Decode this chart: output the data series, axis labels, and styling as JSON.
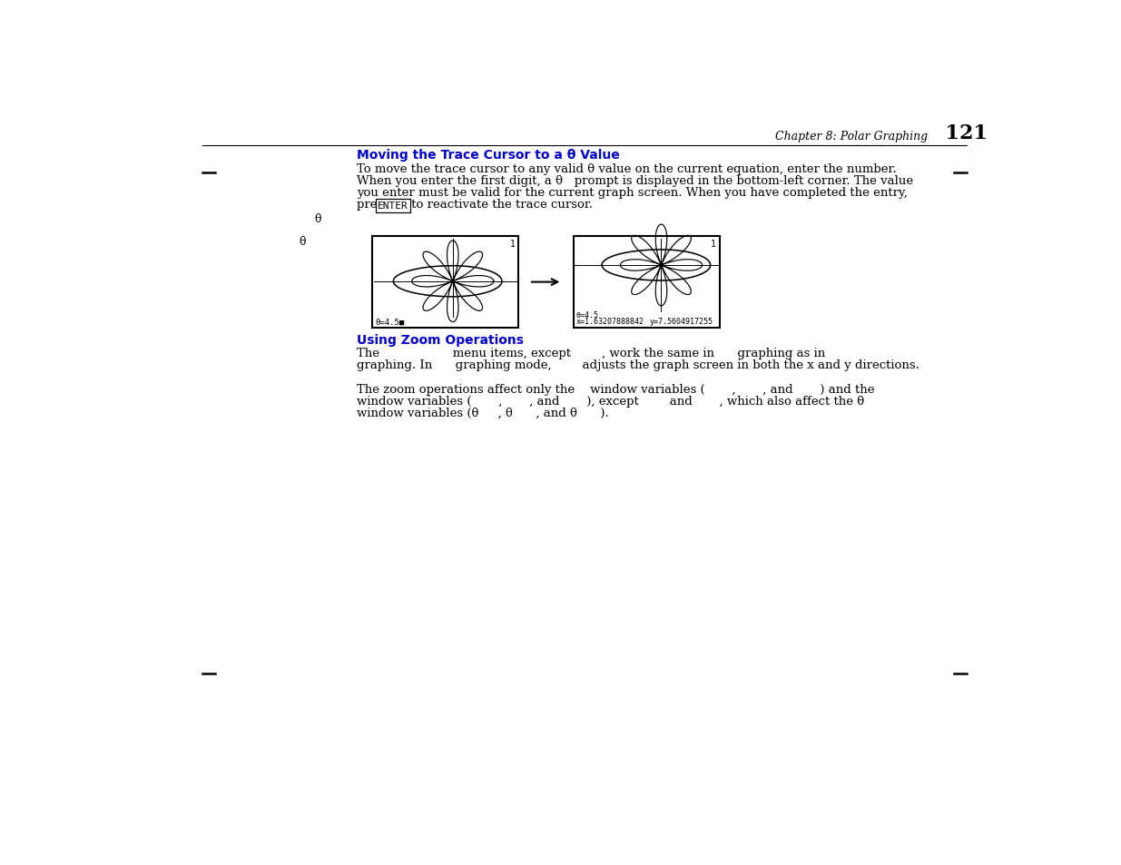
{
  "page_number": "121",
  "chapter_header": "Chapter 8: Polar Graphing",
  "section1_title": "Moving the Trace Cursor to a θ Value",
  "section1_body_line1": "To move the trace cursor to any valid θ value on the current equation, enter the number.",
  "section1_body_line2": "When you enter the first digit, a θ   prompt is displayed in the bottom-left corner. The value",
  "section1_body_line3": "you enter must be valid for the current graph screen. When you have completed the entry,",
  "section1_body_line4_pre": "press ",
  "section1_body_line4_enter": "ENTER",
  "section1_body_line4_post": " to reactivate the trace cursor.",
  "fig1_label_bottom": "θ=4.5■",
  "fig2_theta": "θ=4.5",
  "fig2_x": "x=1.63207888842",
  "fig2_y": "y=7.5604917255",
  "left_margin_theta1": "θ",
  "left_margin_theta2": "θ",
  "section2_title": "Using Zoom Operations",
  "s2_line1a": "The",
  "s2_line1b": "menu items, except",
  "s2_line1c": ", work the same in",
  "s2_line1d": "graphing as in",
  "s2_line2a": "graphing. In",
  "s2_line2b": "graphing mode,",
  "s2_line2c": "adjusts the graph screen in both the x and y directions.",
  "s2_line3": "The zoom operations affect only the    window variables (       ,       , and       ) and the",
  "s2_line4": "window variables (       ,       , and       ), except        and       , which also affect the θ",
  "s2_line5": "window variables (θ     , θ      , and θ      ).",
  "bg_color": "#ffffff",
  "text_color": "#000000",
  "title_color": "#0000cc"
}
